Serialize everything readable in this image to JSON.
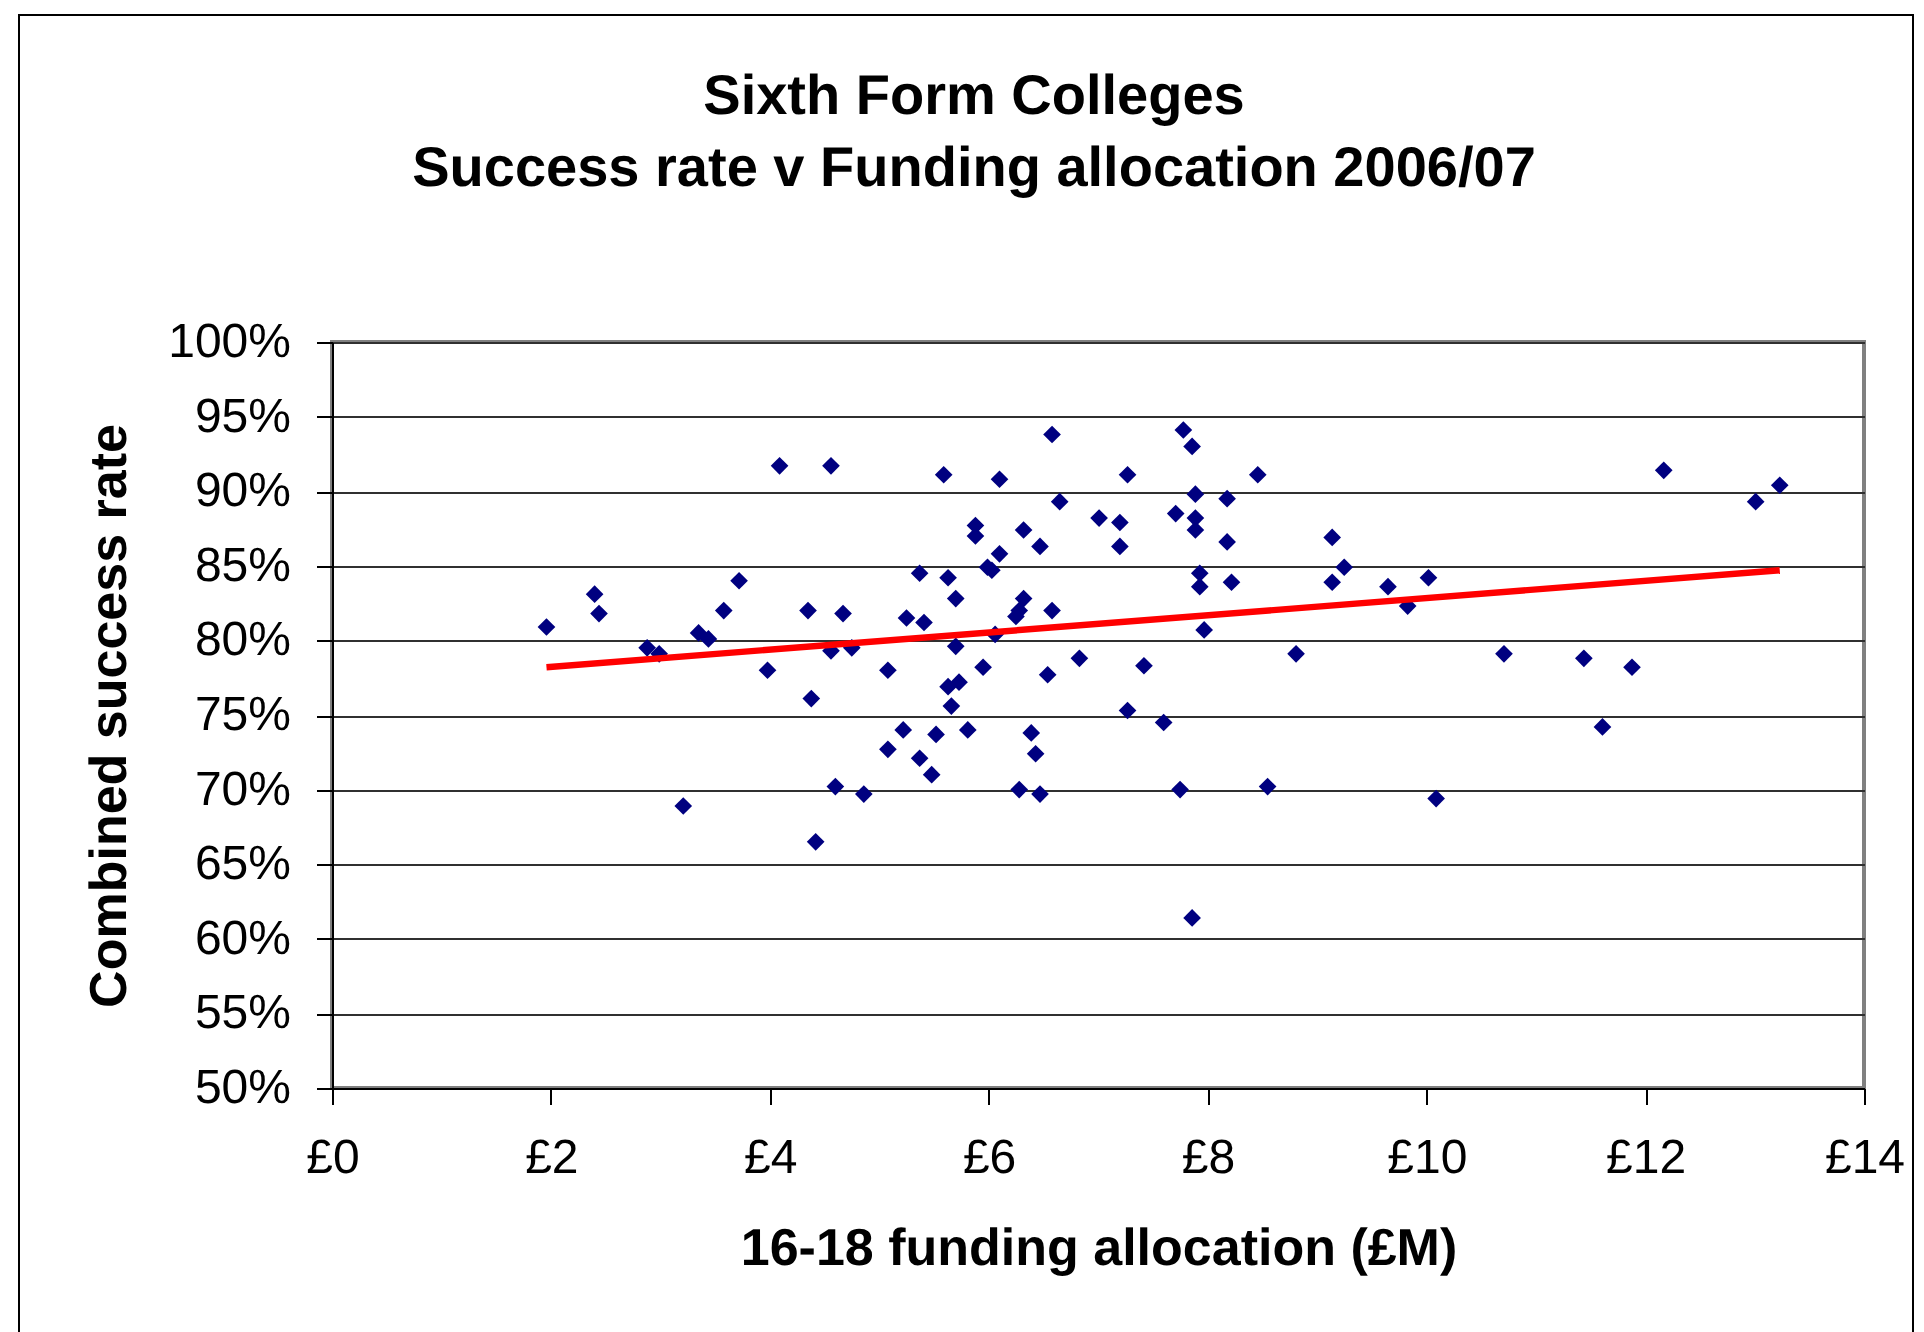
{
  "chart_data": {
    "type": "scatter",
    "title": "Sixth Form Colleges\nSuccess rate v Funding allocation 2006/07",
    "xlabel": "16-18 funding allocation (£M)",
    "ylabel": "Combined success rate",
    "xlim": [
      0,
      14
    ],
    "xticks": [
      {
        "value": 0,
        "label": "£0"
      },
      {
        "value": 2,
        "label": "£2"
      },
      {
        "value": 4,
        "label": "£4"
      },
      {
        "value": 6,
        "label": "£6"
      },
      {
        "value": 8,
        "label": "£8"
      },
      {
        "value": 10,
        "label": "£10"
      },
      {
        "value": 12,
        "label": "£12"
      },
      {
        "value": 14,
        "label": "£14"
      }
    ],
    "ylim": [
      50,
      100
    ],
    "yticks": [
      {
        "value": 50,
        "label": "50%"
      },
      {
        "value": 55,
        "label": "55%"
      },
      {
        "value": 60,
        "label": "60%"
      },
      {
        "value": 65,
        "label": "65%"
      },
      {
        "value": 70,
        "label": "70%"
      },
      {
        "value": 75,
        "label": "75%"
      },
      {
        "value": 80,
        "label": "80%"
      },
      {
        "value": 85,
        "label": "85%"
      },
      {
        "value": 90,
        "label": "90%"
      },
      {
        "value": 95,
        "label": "95%"
      },
      {
        "value": 100,
        "label": "100%"
      }
    ],
    "grid": "y",
    "marker": "diamond",
    "series": [
      {
        "color": "#000080",
        "x": [
          1.96,
          2.4,
          2.44,
          2.88,
          2.99,
          3.21,
          3.35,
          3.44,
          3.58,
          3.72,
          3.98,
          4.09,
          4.35,
          4.38,
          4.42,
          4.56,
          4.56,
          4.6,
          4.67,
          4.75,
          4.86,
          5.08,
          5.08,
          5.22,
          5.25,
          5.41,
          5.37,
          5.37,
          5.48,
          5.52,
          5.59,
          5.63,
          5.7,
          5.7,
          5.63,
          5.73,
          5.66,
          5.81,
          5.88,
          5.88,
          5.95,
          5.99,
          6.03,
          6.1,
          6.1,
          6.06,
          6.25,
          6.28,
          6.32,
          6.32,
          6.28,
          6.39,
          6.43,
          6.47,
          6.47,
          6.54,
          6.58,
          6.58,
          6.65,
          6.83,
          7.01,
          7.2,
          7.2,
          7.27,
          7.27,
          7.42,
          7.6,
          7.71,
          7.75,
          7.78,
          7.86,
          7.86,
          7.89,
          7.89,
          7.89,
          7.93,
          7.93,
          7.97,
          8.18,
          8.18,
          8.22,
          8.46,
          8.55,
          8.81,
          9.14,
          9.25,
          9.14,
          9.65,
          9.83,
          10.02,
          10.09,
          10.71,
          11.44,
          11.61,
          11.88,
          12.17,
          13.01,
          13.23
        ],
        "values": [
          80.9,
          83.1,
          81.8,
          79.5,
          79.1,
          68.9,
          80.5,
          80.1,
          82.0,
          84.0,
          78.0,
          91.7,
          82.0,
          76.1,
          66.5,
          91.7,
          79.3,
          70.2,
          81.8,
          79.5,
          69.7,
          78.0,
          72.7,
          74.0,
          81.5,
          81.2,
          84.5,
          72.1,
          71.0,
          73.7,
          91.1,
          84.2,
          82.8,
          79.6,
          76.9,
          77.2,
          75.6,
          74.0,
          87.7,
          87.0,
          78.2,
          84.9,
          84.7,
          90.8,
          85.8,
          80.4,
          81.6,
          82.0,
          82.8,
          87.4,
          70.0,
          73.8,
          72.4,
          69.7,
          86.3,
          77.7,
          93.8,
          82.0,
          89.3,
          78.8,
          88.2,
          87.9,
          86.3,
          91.1,
          75.3,
          78.3,
          74.5,
          88.5,
          70.0,
          94.1,
          93.0,
          61.4,
          89.8,
          88.2,
          87.4,
          84.5,
          83.6,
          80.7,
          89.5,
          86.6,
          83.9,
          91.1,
          70.2,
          79.1,
          86.9,
          84.9,
          83.9,
          83.6,
          82.3,
          84.2,
          69.4,
          79.1,
          78.8,
          74.2,
          78.2,
          91.4,
          89.3,
          90.4
        ]
      },
      {
        "type": "line",
        "color": "#ff0000",
        "marker": "none",
        "x": [
          1.96,
          13.23
        ],
        "values": [
          78.2,
          84.7
        ]
      }
    ]
  }
}
